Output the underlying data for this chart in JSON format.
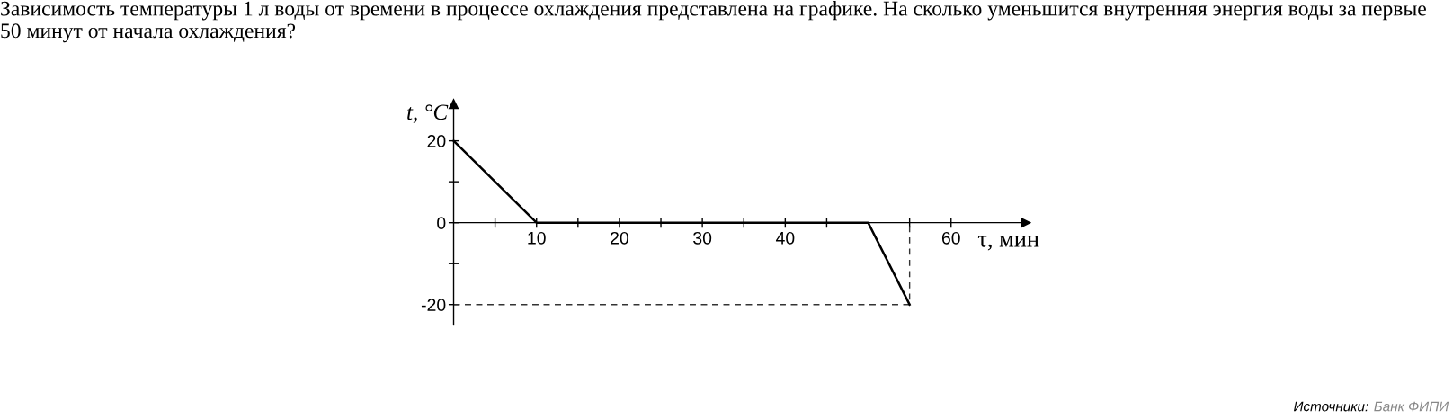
{
  "chart_data": {
    "type": "line",
    "title": "Зависимость температуры 1 л воды от времени в процессе охлаждения представлена на графике. На сколько уменьшится внутренняя энергия воды за первые 50 минут от начала охлаждения?",
    "xlabel": "τ, мин",
    "ylabel": "t, °C",
    "annotations": [
      "Источники:",
      "Банк ФИПИ"
    ],
    "series": [
      {
        "x": [
          0,
          10,
          50,
          55
        ],
        "values": [
          20,
          0,
          0,
          -20
        ],
        "color": "#000000",
        "line_style": "solid"
      },
      {
        "x": [
          0,
          55,
          55
        ],
        "values": [
          -20,
          -20,
          0
        ],
        "color": "#333333",
        "line_style": "dashed"
      }
    ],
    "xlim": [
      0,
      69
    ],
    "ylim": [
      -25,
      29
    ],
    "xticks": [
      {
        "value": 5,
        "label": null
      },
      10,
      {
        "value": 15,
        "label": null
      },
      20,
      {
        "value": 25,
        "label": null
      },
      30,
      {
        "value": 35,
        "label": null
      },
      40,
      {
        "value": 45,
        "label": null
      },
      {
        "value": 55,
        "label": null
      },
      60
    ],
    "yticks": [
      -20,
      {
        "value": -10,
        "label": null
      },
      0,
      {
        "value": 10,
        "label": null
      },
      20
    ],
    "grid": false,
    "legend": false
  }
}
